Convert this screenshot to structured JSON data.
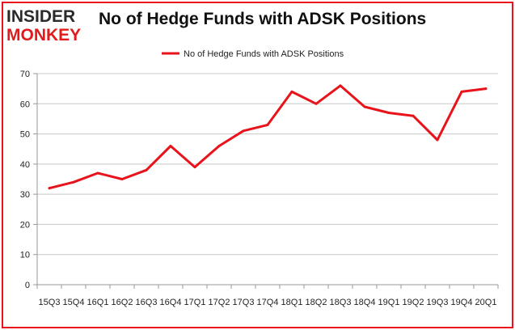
{
  "logo": {
    "line1": "INSIDER",
    "line2": "MONKEY",
    "color_dark": "#2a2a2a",
    "color_red": "#e01b1b"
  },
  "chart_data": {
    "type": "line",
    "title": "No of Hedge Funds with ADSK Positions",
    "categories": [
      "2015Q3",
      "2015Q4",
      "2016Q1",
      "2016Q2",
      "2016Q3",
      "2016Q4",
      "2017Q1",
      "2017Q2",
      "2017Q3",
      "2017Q4",
      "2018Q1",
      "2018Q2",
      "2018Q3",
      "2018Q4",
      "2019Q1",
      "2019Q2",
      "2019Q3",
      "2019Q4",
      "2020Q1"
    ],
    "tick_labels": [
      "15Q3",
      "15Q4",
      "16Q1",
      "16Q2",
      "16Q3",
      "16Q4",
      "17Q1",
      "17Q2",
      "17Q3",
      "17Q4",
      "18Q1",
      "18Q2",
      "18Q3",
      "18Q4",
      "19Q1",
      "19Q2",
      "19Q3",
      "19Q4",
      "20Q1"
    ],
    "series": [
      {
        "name": "No of Hedge Funds with ADSK Positions",
        "color": "#e8131b",
        "values": [
          32,
          34,
          37,
          35,
          38,
          46,
          39,
          46,
          51,
          53,
          64,
          60,
          66,
          59,
          57,
          56,
          48,
          64,
          65
        ]
      }
    ],
    "xlabel": "",
    "ylabel": "",
    "ylim": [
      0,
      70
    ],
    "yticks": [
      0,
      10,
      20,
      30,
      40,
      50,
      60,
      70
    ],
    "grid": true,
    "legend_position": "top-center",
    "border_color": "#e8131b"
  }
}
